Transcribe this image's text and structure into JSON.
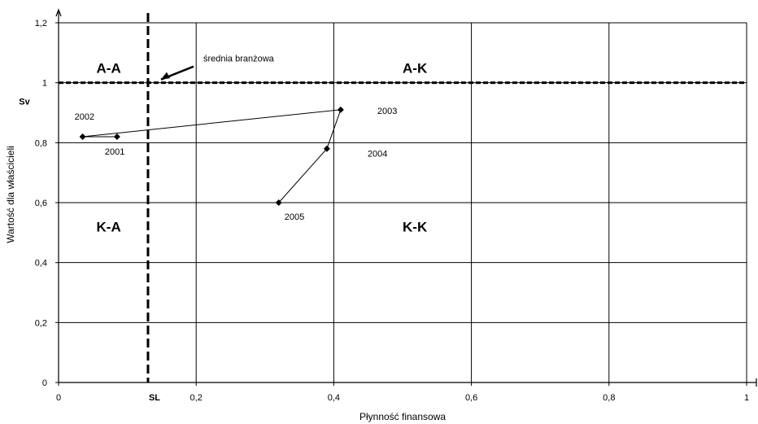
{
  "chart_data": {
    "type": "scatter",
    "title": "",
    "xlabel": "Płynność finansowa",
    "ylabel": "Wartość dla właścicieli",
    "xlim": [
      0,
      1
    ],
    "ylim": [
      0,
      1.2
    ],
    "grid": true,
    "x_ticks": [
      {
        "value": 0,
        "label": "0"
      },
      {
        "value": 0.2,
        "label": "0,2"
      },
      {
        "value": 0.4,
        "label": "0,4"
      },
      {
        "value": 0.6,
        "label": "0,6"
      },
      {
        "value": 0.8,
        "label": "0,8"
      },
      {
        "value": 1,
        "label": "1"
      }
    ],
    "y_ticks": [
      {
        "value": 0,
        "label": "0"
      },
      {
        "value": 0.2,
        "label": "0,2"
      },
      {
        "value": 0.4,
        "label": "0,4"
      },
      {
        "value": 0.6,
        "label": "0,6"
      },
      {
        "value": 0.8,
        "label": "0,8"
      },
      {
        "value": 1,
        "label": "1"
      },
      {
        "value": 1.2,
        "label": "1,2"
      }
    ],
    "series": [
      {
        "points": [
          {
            "label": "2001",
            "x": 0.085,
            "y": 0.82
          },
          {
            "label": "2002",
            "x": 0.035,
            "y": 0.82
          },
          {
            "label": "2003",
            "x": 0.41,
            "y": 0.91
          },
          {
            "label": "2004",
            "x": 0.39,
            "y": 0.78
          },
          {
            "label": "2005",
            "x": 0.32,
            "y": 0.6
          }
        ]
      }
    ],
    "reference_lines": {
      "vertical": {
        "x": 0.13,
        "label": "SL"
      },
      "horizontal": {
        "y": 1.0,
        "label": "Sv"
      }
    },
    "quadrants": [
      {
        "label": "A-A",
        "x": 0.055,
        "y": 1.05
      },
      {
        "label": "A-K",
        "x": 0.5,
        "y": 1.05
      },
      {
        "label": "K-A",
        "x": 0.055,
        "y": 0.52
      },
      {
        "label": "K-K",
        "x": 0.5,
        "y": 0.52
      }
    ],
    "annotation": {
      "text": "średnia branżowa",
      "x": 0.13,
      "y": 1.0
    }
  }
}
